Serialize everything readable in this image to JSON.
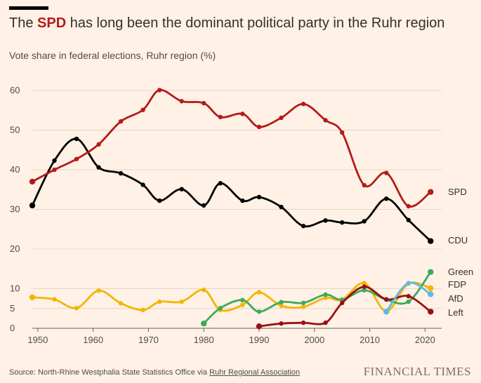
{
  "header": {
    "title_pre": "The ",
    "title_highlight": "SPD",
    "title_post": " has long been the dominant political party in the Ruhr region",
    "subtitle": "Vote share in federal elections, Ruhr region (%)"
  },
  "footer": {
    "source_prefix": "Source: North-Rhine Westphalia State Statistics Office via ",
    "source_link": "Ruhr Regional Association",
    "brand": "FINANCIAL TIMES"
  },
  "colors": {
    "background": "#fff1e5",
    "highlight": "#b31b1b"
  },
  "chart_data": {
    "type": "line",
    "title": "The SPD has long been the dominant political party in the Ruhr region",
    "subtitle": "Vote share in federal elections, Ruhr region (%)",
    "xlabel": "",
    "ylabel": "",
    "xlim": [
      1949,
      2023
    ],
    "ylim": [
      0,
      60
    ],
    "x_ticks": [
      1950,
      1960,
      1970,
      1980,
      1990,
      2000,
      2010,
      2020
    ],
    "y_ticks": [
      0,
      5,
      10,
      20,
      30,
      40,
      50,
      60
    ],
    "grid": true,
    "legend": "direct labels at right end of lines",
    "series": [
      {
        "name": "SPD",
        "color": "#b31b1b",
        "x": [
          1949,
          1953,
          1957,
          1961,
          1965,
          1969,
          1972,
          1976,
          1980,
          1983,
          1987,
          1990,
          1994,
          1998,
          2002,
          2005,
          2009,
          2013,
          2017,
          2021
        ],
        "values": [
          37,
          40,
          42.7,
          46.4,
          52.2,
          55.1,
          60.1,
          57.3,
          56.8,
          53.3,
          54.1,
          50.8,
          53.1,
          56.6,
          52.5,
          49.4,
          36.1,
          39.2,
          30.8,
          34.4
        ]
      },
      {
        "name": "CDU",
        "color": "#000000",
        "x": [
          1949,
          1953,
          1957,
          1961,
          1965,
          1969,
          1972,
          1976,
          1980,
          1983,
          1987,
          1990,
          1994,
          1998,
          2002,
          2005,
          2009,
          2013,
          2017,
          2021
        ],
        "values": [
          31,
          42.3,
          47.8,
          40.6,
          39.1,
          36.2,
          32.2,
          35.1,
          31,
          36.6,
          32.2,
          33.1,
          30.6,
          25.8,
          27.2,
          26.7,
          27,
          32.7,
          27.3,
          22
        ]
      },
      {
        "name": "FDP",
        "color": "#f2b600",
        "x": [
          1949,
          1953,
          1957,
          1961,
          1965,
          1969,
          1972,
          1976,
          1980,
          1983,
          1987,
          1990,
          1994,
          1998,
          2002,
          2005,
          2009,
          2013,
          2017,
          2021
        ],
        "values": [
          7.8,
          7.3,
          5.1,
          9.5,
          6.3,
          4.6,
          6.7,
          6.7,
          9.7,
          4.6,
          5.9,
          9.1,
          5.7,
          5.4,
          7.7,
          7.2,
          11.4,
          4.3,
          11.3,
          10.1
        ]
      },
      {
        "name": "Green",
        "color": "#3daa5a",
        "x": [
          1980,
          1983,
          1987,
          1990,
          1994,
          1998,
          2002,
          2005,
          2009,
          2013,
          2017,
          2021
        ],
        "values": [
          1.2,
          5.1,
          7.1,
          4.2,
          6.6,
          6.4,
          8.5,
          7.2,
          9.6,
          7.2,
          6.7,
          14.2
        ]
      },
      {
        "name": "Left",
        "color": "#990f14",
        "x": [
          1990,
          1994,
          1998,
          2002,
          2005,
          2009,
          2013,
          2017,
          2021
        ],
        "values": [
          0.5,
          1.2,
          1.4,
          1.4,
          6.4,
          10.5,
          7.3,
          8.1,
          4.2
        ]
      },
      {
        "name": "AfD",
        "color": "#5ab9ea",
        "x": [
          2013,
          2017,
          2021
        ],
        "values": [
          4.2,
          11.4,
          8.6
        ]
      }
    ]
  }
}
